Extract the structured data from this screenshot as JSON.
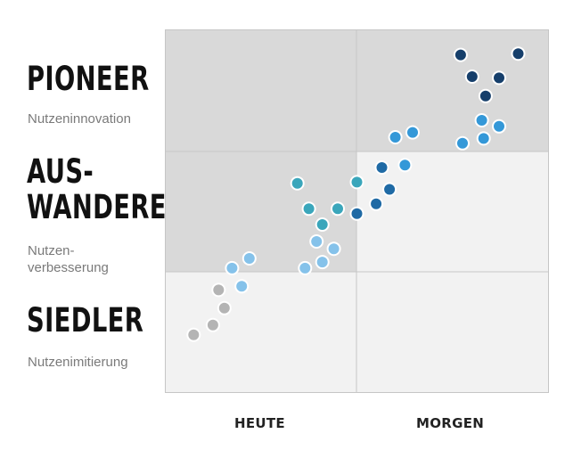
{
  "rows": [
    {
      "title": "PIONEER",
      "subtitle": "Nutzeninnovation"
    },
    {
      "title": "AUS-\nWANDERER",
      "subtitle": "Nutzen-\nverbesserung"
    },
    {
      "title": "SIEDLER",
      "subtitle": "Nutzenimitierung"
    }
  ],
  "chart_data": {
    "type": "scatter",
    "columns": [
      "HEUTE",
      "MORGEN"
    ],
    "rows": [
      "PIONEER",
      "AUS-WANDERER",
      "SIEDLER"
    ],
    "xlim": [
      0,
      2
    ],
    "ylim": [
      0,
      3
    ],
    "cell_colors": [
      [
        "#d9d9d9",
        "#d9d9d9"
      ],
      [
        "#d9d9d9",
        "#f2f2f2"
      ],
      [
        "#f2f2f2",
        "#f2f2f2"
      ]
    ],
    "grid_color": "#c6c6c6",
    "points": [
      {
        "x": 1.54,
        "y": 2.79,
        "color": "#163f6b"
      },
      {
        "x": 1.84,
        "y": 2.8,
        "color": "#163f6b"
      },
      {
        "x": 1.6,
        "y": 2.61,
        "color": "#163f6b"
      },
      {
        "x": 1.74,
        "y": 2.6,
        "color": "#163f6b"
      },
      {
        "x": 1.67,
        "y": 2.45,
        "color": "#163f6b"
      },
      {
        "x": 1.65,
        "y": 2.25,
        "color": "#3498d8"
      },
      {
        "x": 1.74,
        "y": 2.2,
        "color": "#3498d8"
      },
      {
        "x": 1.66,
        "y": 2.1,
        "color": "#3498d8"
      },
      {
        "x": 1.55,
        "y": 2.06,
        "color": "#3498d8"
      },
      {
        "x": 1.2,
        "y": 2.11,
        "color": "#3498d8"
      },
      {
        "x": 1.29,
        "y": 2.15,
        "color": "#3498d8"
      },
      {
        "x": 1.25,
        "y": 1.88,
        "color": "#3498d8"
      },
      {
        "x": 1.13,
        "y": 1.86,
        "color": "#1f6aa5"
      },
      {
        "x": 1.17,
        "y": 1.68,
        "color": "#1f6aa5"
      },
      {
        "x": 1.1,
        "y": 1.56,
        "color": "#1f6aa5"
      },
      {
        "x": 1.0,
        "y": 1.48,
        "color": "#1f6aa5"
      },
      {
        "x": 0.69,
        "y": 1.73,
        "color": "#3aa6bb"
      },
      {
        "x": 1.0,
        "y": 1.74,
        "color": "#3aa6bb"
      },
      {
        "x": 0.75,
        "y": 1.52,
        "color": "#3aa6bb"
      },
      {
        "x": 0.9,
        "y": 1.52,
        "color": "#3aa6bb"
      },
      {
        "x": 0.82,
        "y": 1.39,
        "color": "#3aa6bb"
      },
      {
        "x": 0.79,
        "y": 1.25,
        "color": "#85c2ea"
      },
      {
        "x": 0.88,
        "y": 1.19,
        "color": "#85c2ea"
      },
      {
        "x": 0.82,
        "y": 1.08,
        "color": "#85c2ea"
      },
      {
        "x": 0.73,
        "y": 1.03,
        "color": "#85c2ea"
      },
      {
        "x": 0.44,
        "y": 1.11,
        "color": "#85c2ea"
      },
      {
        "x": 0.35,
        "y": 1.03,
        "color": "#85c2ea"
      },
      {
        "x": 0.4,
        "y": 0.88,
        "color": "#85c2ea"
      },
      {
        "x": 0.28,
        "y": 0.85,
        "color": "#b4b4b4"
      },
      {
        "x": 0.31,
        "y": 0.7,
        "color": "#b4b4b4"
      },
      {
        "x": 0.25,
        "y": 0.56,
        "color": "#b4b4b4"
      },
      {
        "x": 0.15,
        "y": 0.48,
        "color": "#b4b4b4"
      }
    ]
  }
}
